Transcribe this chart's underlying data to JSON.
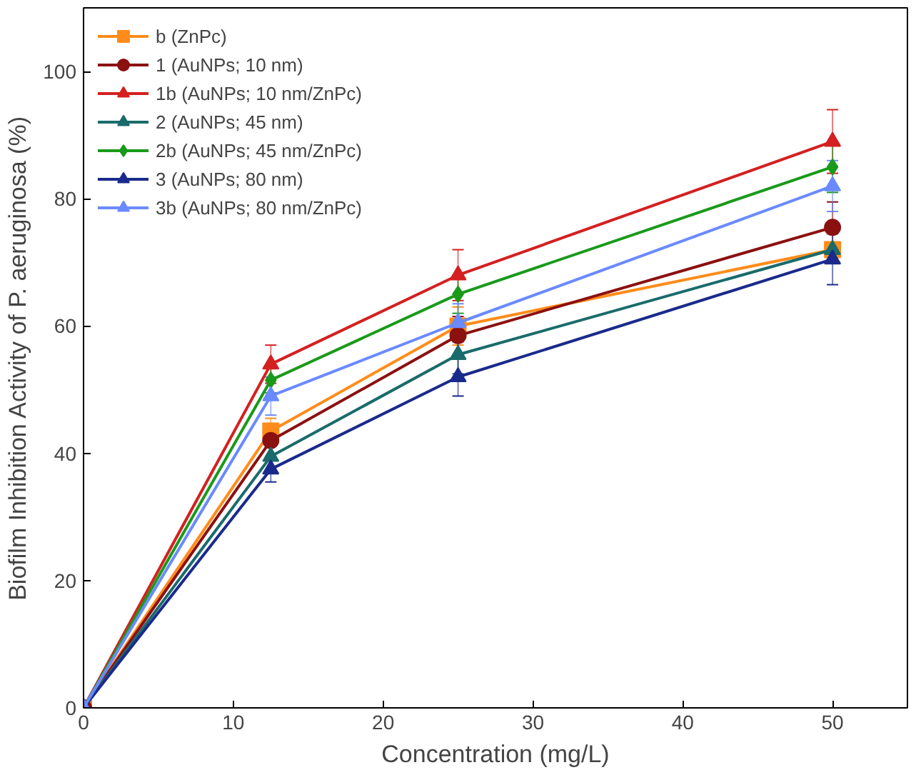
{
  "chart_data": {
    "type": "line",
    "xlabel": "Concentration (mg/L)",
    "ylabel": "Biofilm Inhibition Activity of P. aeruginosa (%)",
    "x": [
      0,
      12.5,
      25,
      50
    ],
    "xlim": [
      0,
      55
    ],
    "xticks": [
      0,
      10,
      20,
      30,
      40,
      50
    ],
    "ylim": [
      0,
      110
    ],
    "yticks": [
      0,
      20,
      40,
      60,
      80,
      100
    ],
    "grid": false,
    "legend": "top left",
    "series": [
      {
        "name": "b (ZnPc)",
        "color": "#ff8c1a",
        "marker": "square",
        "values": [
          0,
          43.5,
          60,
          72
        ],
        "errors": [
          null,
          2,
          3,
          null
        ]
      },
      {
        "name": "1 (AuNPs; 10 nm)",
        "color": "#8b1010",
        "marker": "circle",
        "values": [
          0,
          42,
          58.5,
          75.5
        ],
        "errors": [
          null,
          null,
          3,
          4
        ]
      },
      {
        "name": "1b (AuNPs; 10 nm/ZnPc)",
        "color": "#d42020",
        "marker": "triangle",
        "values": [
          0,
          54,
          68,
          89
        ],
        "errors": [
          null,
          3,
          4,
          5
        ]
      },
      {
        "name": "2 (AuNPs; 45 nm)",
        "color": "#1a6b6b",
        "marker": "triangle",
        "values": [
          0,
          39.5,
          55.5,
          72
        ],
        "errors": [
          null,
          null,
          3,
          null
        ]
      },
      {
        "name": "2b (AuNPs; 45 nm/ZnPc)",
        "color": "#1a9a1a",
        "marker": "diamond",
        "values": [
          0,
          51.5,
          65,
          85
        ],
        "errors": [
          null,
          2,
          3,
          4
        ]
      },
      {
        "name": "3 (AuNPs; 80 nm)",
        "color": "#1a2a8c",
        "marker": "triangle",
        "values": [
          0,
          37.5,
          52,
          70.5
        ],
        "errors": [
          null,
          2,
          3,
          4
        ]
      },
      {
        "name": "3b (AuNPs; 80 nm/ZnPc)",
        "color": "#6a8aff",
        "marker": "triangle",
        "values": [
          0,
          49,
          60.5,
          82
        ],
        "errors": [
          null,
          3,
          3,
          4
        ]
      }
    ]
  }
}
